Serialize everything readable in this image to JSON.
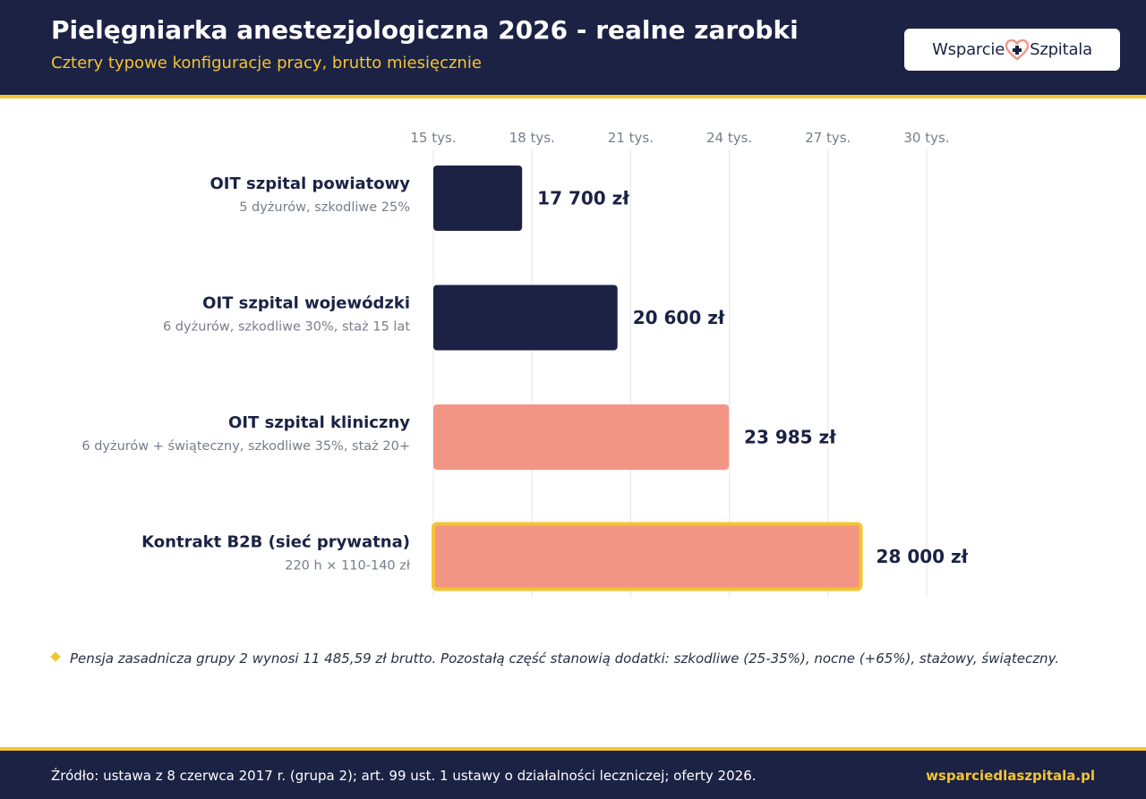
{
  "header": {
    "title": "Pielęgniarka anestezjologiczna 2026 - realne zarobki",
    "subtitle": "Cztery typowe konfiguracje pracy, brutto miesięcznie",
    "logo": "Wsparcie Szpitala"
  },
  "colors": {
    "navy": "#1b2244",
    "accent_yellow": "#f5c431",
    "salmon": "#f39585",
    "muted_text": "#777d8a"
  },
  "chart_data": {
    "type": "bar",
    "orientation": "horizontal",
    "xlim": [
      15000,
      30000
    ],
    "ticks": [
      15000,
      18000,
      21000,
      24000,
      27000,
      30000
    ],
    "tick_labels": [
      "15 tys.",
      "18 tys.",
      "21 tys.",
      "24 tys.",
      "27 tys.",
      "30 tys."
    ],
    "grid": true,
    "bars": [
      {
        "label": "OIT szpital powiatowy",
        "sublabel": "5 dyżurów, szkodliwe 25%",
        "value": 17700,
        "value_label": "17 700 zł",
        "color": "#1b2244",
        "highlight": false
      },
      {
        "label": "OIT szpital wojewódzki",
        "sublabel": "6 dyżurów, szkodliwe 30%, staż 15 lat",
        "value": 20600,
        "value_label": "20 600 zł",
        "color": "#1b2244",
        "highlight": false
      },
      {
        "label": "OIT szpital kliniczny",
        "sublabel": "6 dyżurów + świąteczny, szkodliwe 35%, staż 20+",
        "value": 23985,
        "value_label": "23 985 zł",
        "color": "#f39585",
        "highlight": false
      },
      {
        "label": "Kontrakt B2B (sieć prywatna)",
        "sublabel": "220 h × 110-140 zł",
        "value": 28000,
        "value_label": "28 000 zł",
        "color": "#f39585",
        "highlight": true
      }
    ]
  },
  "note": "Pensja zasadnicza grupy 2 wynosi 11 485,59 zł brutto. Pozostałą część stanowią dodatki: szkodliwe (25-35%), nocne (+65%), stażowy, świąteczny.",
  "footer": {
    "source": "Źródło: ustawa z 8 czerwca 2017 r. (grupa 2); art. 99 ust. 1 ustawy o działalności leczniczej; oferty 2026.",
    "site": "wsparciedlaszpitala.pl"
  }
}
